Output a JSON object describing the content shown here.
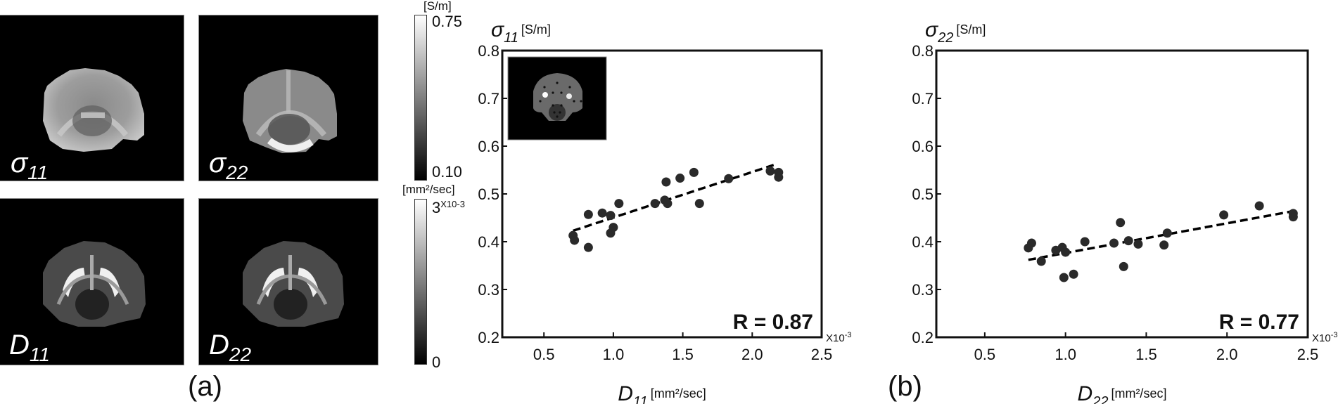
{
  "panel_a": {
    "label": "(a)",
    "maps": [
      {
        "symbol": "σ",
        "subscript": "11",
        "kind": "conductivity"
      },
      {
        "symbol": "σ",
        "subscript": "22",
        "kind": "conductivity"
      },
      {
        "symbol": "D",
        "subscript": "11",
        "kind": "diffusion"
      },
      {
        "symbol": "D",
        "subscript": "22",
        "kind": "diffusion"
      }
    ],
    "colorbar_conductivity": {
      "unit": "[S/m]",
      "max": "0.75",
      "min": "0.10"
    },
    "colorbar_diffusion": {
      "unit": "[mm²/sec]",
      "max": "3",
      "max_exp": "X10-3",
      "min": "0"
    }
  },
  "panel_b": {
    "label": "(b)"
  },
  "chart_data": [
    {
      "type": "scatter",
      "title": "σ11 [S/m]",
      "ylabel_symbol": "σ",
      "ylabel_sub": "11",
      "ylabel_unit": "[S/m]",
      "xlabel_symbol": "D",
      "xlabel_sub": "11",
      "xlabel_unit": "[mm²/sec]",
      "x_multiplier": "X10-3",
      "xlim": [
        0.2,
        2.5
      ],
      "ylim": [
        0.2,
        0.8
      ],
      "xticks": [
        "0.5",
        "1.0",
        "1.5",
        "2.0",
        "2.5"
      ],
      "xtick_values": [
        0.5,
        1.0,
        1.5,
        2.0,
        2.5
      ],
      "yticks": [
        "0.2",
        "0.3",
        "0.4",
        "0.5",
        "0.6",
        "0.7",
        "0.8"
      ],
      "ytick_values": [
        0.2,
        0.3,
        0.4,
        0.5,
        0.6,
        0.7,
        0.8
      ],
      "annotation": "R = 0.87",
      "has_inset_image": true,
      "grid": false,
      "points": [
        [
          0.71,
          0.413
        ],
        [
          0.72,
          0.403
        ],
        [
          0.82,
          0.457
        ],
        [
          0.82,
          0.388
        ],
        [
          0.92,
          0.46
        ],
        [
          0.98,
          0.455
        ],
        [
          0.98,
          0.418
        ],
        [
          1.0,
          0.43
        ],
        [
          1.04,
          0.48
        ],
        [
          1.3,
          0.48
        ],
        [
          1.37,
          0.487
        ],
        [
          1.38,
          0.525
        ],
        [
          1.39,
          0.48
        ],
        [
          1.48,
          0.533
        ],
        [
          1.58,
          0.545
        ],
        [
          1.62,
          0.48
        ],
        [
          1.83,
          0.532
        ],
        [
          2.13,
          0.548
        ],
        [
          2.19,
          0.545
        ],
        [
          2.19,
          0.535
        ]
      ],
      "fit_line": [
        [
          0.71,
          0.423
        ],
        [
          2.18,
          0.563
        ]
      ]
    },
    {
      "type": "scatter",
      "title": "σ22 [S/m]",
      "ylabel_symbol": "σ",
      "ylabel_sub": "22",
      "ylabel_unit": "[S/m]",
      "xlabel_symbol": "D",
      "xlabel_sub": "22",
      "xlabel_unit": "[mm²/sec]",
      "x_multiplier": "X10-3",
      "xlim": [
        0.2,
        2.5
      ],
      "ylim": [
        0.2,
        0.8
      ],
      "xticks": [
        "0.5",
        "1.0",
        "1.5",
        "2.0",
        "2.5"
      ],
      "xtick_values": [
        0.5,
        1.0,
        1.5,
        2.0,
        2.5
      ],
      "yticks": [
        "0.2",
        "0.3",
        "0.4",
        "0.5",
        "0.6",
        "0.7",
        "0.8"
      ],
      "ytick_values": [
        0.2,
        0.3,
        0.4,
        0.5,
        0.6,
        0.7,
        0.8
      ],
      "annotation": "R = 0.77",
      "has_inset_image": false,
      "grid": false,
      "points": [
        [
          0.77,
          0.387
        ],
        [
          0.79,
          0.397
        ],
        [
          0.85,
          0.359
        ],
        [
          0.94,
          0.382
        ],
        [
          0.98,
          0.388
        ],
        [
          0.99,
          0.325
        ],
        [
          1.0,
          0.378
        ],
        [
          1.05,
          0.332
        ],
        [
          1.12,
          0.4
        ],
        [
          1.3,
          0.397
        ],
        [
          1.34,
          0.44
        ],
        [
          1.36,
          0.348
        ],
        [
          1.39,
          0.402
        ],
        [
          1.45,
          0.395
        ],
        [
          1.61,
          0.393
        ],
        [
          1.63,
          0.418
        ],
        [
          1.98,
          0.456
        ],
        [
          2.2,
          0.475
        ],
        [
          2.41,
          0.459
        ],
        [
          2.41,
          0.452
        ]
      ],
      "fit_line": [
        [
          0.77,
          0.362
        ],
        [
          2.41,
          0.464
        ]
      ]
    }
  ]
}
